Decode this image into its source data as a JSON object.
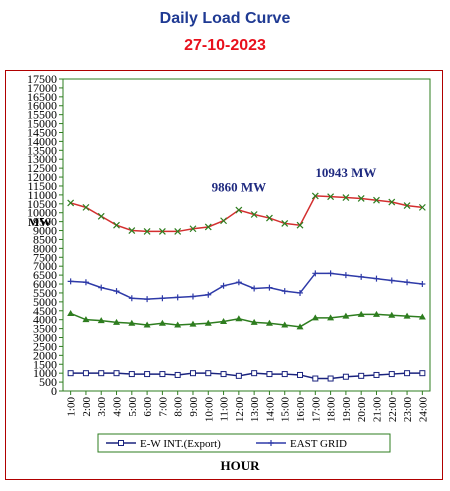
{
  "title": "Daily Load Curve",
  "date": "27-10-2023",
  "chart_data": {
    "type": "line",
    "title": "Daily Load Curve",
    "subtitle": "27-10-2023",
    "xlabel": "HOUR",
    "ylabel": "MW",
    "ylim": [
      0,
      17500
    ],
    "ytick_step": 500,
    "categories": [
      "1:00",
      "2:00",
      "3:00",
      "4:00",
      "5:00",
      "6:00",
      "7:00",
      "8:00",
      "9:00",
      "10:00",
      "11:00",
      "12:00",
      "13:00",
      "14:00",
      "15:00",
      "16:00",
      "17:00",
      "18:00",
      "19:00",
      "20:00",
      "21:00",
      "22:00",
      "23:00",
      "24:00"
    ],
    "grid": false,
    "legend_position": "bottom",
    "series": [
      {
        "name": "E-W INT.(Export)",
        "color": "#1a237e",
        "marker": "square-open",
        "values": [
          1000,
          1000,
          1000,
          1000,
          950,
          950,
          950,
          900,
          1000,
          1000,
          950,
          850,
          1000,
          950,
          950,
          900,
          700,
          700,
          800,
          850,
          900,
          950,
          1000,
          1000
        ]
      },
      {
        "name": "EAST GRID",
        "color": "#2e3aa8",
        "marker": "plus",
        "values": [
          6150,
          6100,
          5800,
          5600,
          5200,
          5150,
          5200,
          5250,
          5300,
          5400,
          5900,
          6100,
          5750,
          5800,
          5600,
          5500,
          6600,
          6600,
          6500,
          6400,
          6300,
          6200,
          6100,
          6000
        ]
      },
      {
        "name": "",
        "color": "#2e7d1f",
        "marker": "triangle",
        "values": [
          4350,
          4000,
          3950,
          3850,
          3800,
          3700,
          3800,
          3700,
          3750,
          3800,
          3900,
          4050,
          3850,
          3800,
          3700,
          3600,
          4100,
          4100,
          4200,
          4300,
          4300,
          4250,
          4200,
          4150
        ]
      },
      {
        "name": "",
        "color": "#d32f2f",
        "marker": "x",
        "values": [
          10550,
          10300,
          9800,
          9300,
          9000,
          8950,
          8950,
          8950,
          9100,
          9200,
          9550,
          10150,
          9900,
          9700,
          9400,
          9300,
          10943,
          10900,
          10850,
          10800,
          10700,
          10600,
          10400,
          10300
        ]
      }
    ],
    "annotations": [
      {
        "text": "9860 MW",
        "x": "12:00",
        "y": 11200
      },
      {
        "text": "10943 MW",
        "x": "19:00",
        "y": 12000
      }
    ]
  }
}
